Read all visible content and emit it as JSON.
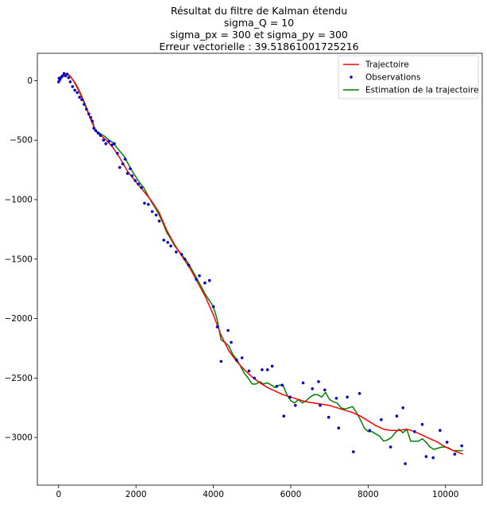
{
  "chart_data": {
    "type": "line",
    "title_lines": [
      "Résultat du filtre de Kalman étendu",
      "sigma_Q = 10",
      "sigma_px = 300 et sigma_py = 300",
      "Erreur vectorielle : 39.51861001725216"
    ],
    "xlabel": "",
    "ylabel": "",
    "xlim": [
      -550,
      10950
    ],
    "ylim": [
      -3400,
      230
    ],
    "x_ticks": [
      0,
      2000,
      4000,
      6000,
      8000,
      10000
    ],
    "y_ticks": [
      0,
      -500,
      -1000,
      -1500,
      -2000,
      -2500,
      -3000
    ],
    "grid": false,
    "legend_position": "top-right",
    "colors": {
      "trajectory": "#ff0000",
      "observations": "#0000cc",
      "estimate": "#008000"
    },
    "series": [
      {
        "name": "Trajectoire",
        "kind": "line",
        "x": [
          0,
          50,
          100,
          150,
          200,
          250,
          300,
          350,
          400,
          500,
          600,
          700,
          800,
          900,
          1000,
          1200,
          1400,
          1600,
          1800,
          2000,
          2200,
          2400,
          2600,
          2800,
          3000,
          3200,
          3400,
          3600,
          3800,
          4000,
          4200,
          4400,
          4600,
          4800,
          5000,
          5200,
          5400,
          5600,
          5800,
          6000,
          6200,
          6400,
          6600,
          6800,
          7000,
          7200,
          7400,
          7600,
          7800,
          8000,
          8200,
          8400,
          8600,
          8800,
          9000,
          9200,
          9400,
          9600,
          9800,
          10000,
          10200,
          10450
        ],
        "y": [
          10,
          25,
          40,
          48,
          52,
          50,
          38,
          15,
          -10,
          -70,
          -140,
          -220,
          -300,
          -380,
          -440,
          -490,
          -560,
          -660,
          -770,
          -850,
          -930,
          -1010,
          -1110,
          -1260,
          -1380,
          -1480,
          -1580,
          -1700,
          -1820,
          -1970,
          -2140,
          -2270,
          -2360,
          -2430,
          -2490,
          -2540,
          -2580,
          -2610,
          -2640,
          -2660,
          -2680,
          -2700,
          -2710,
          -2720,
          -2730,
          -2750,
          -2770,
          -2790,
          -2820,
          -2860,
          -2900,
          -2930,
          -2940,
          -2940,
          -2930,
          -2950,
          -2980,
          -3010,
          -3040,
          -3080,
          -3110,
          -3140
        ]
      },
      {
        "name": "Observations",
        "kind": "scatter",
        "x": [
          0,
          10,
          40,
          70,
          100,
          140,
          180,
          220,
          260,
          300,
          360,
          420,
          480,
          540,
          600,
          660,
          720,
          780,
          830,
          870,
          910,
          960,
          1020,
          1080,
          1160,
          1220,
          1300,
          1380,
          1440,
          1520,
          1580,
          1660,
          1720,
          1780,
          1850,
          1900,
          1980,
          2060,
          2140,
          2220,
          2320,
          2420,
          2520,
          2600,
          2720,
          2820,
          2900,
          3040,
          3180,
          3260,
          3360,
          3560,
          3640,
          3780,
          3900,
          4000,
          4100,
          4200,
          4380,
          4460,
          4600,
          4740,
          4920,
          5060,
          5260,
          5400,
          5520,
          5640,
          5780,
          5820,
          5980,
          6120,
          6320,
          6560,
          6720,
          6760,
          6880,
          6980,
          7180,
          7240,
          7460,
          7620,
          7780,
          8040,
          8340,
          8580,
          8740,
          8900,
          8960,
          9200,
          9400,
          9500,
          9680,
          9860,
          10040,
          10240,
          10420
        ],
        "y": [
          -10,
          20,
          10,
          30,
          40,
          60,
          40,
          55,
          25,
          -10,
          -50,
          -80,
          -100,
          -140,
          -160,
          -200,
          -240,
          -280,
          -310,
          -340,
          -400,
          -420,
          -440,
          -460,
          -500,
          -530,
          -510,
          -540,
          -530,
          -610,
          -730,
          -700,
          -660,
          -780,
          -740,
          -800,
          -840,
          -870,
          -900,
          -1030,
          -1040,
          -1100,
          -1130,
          -1180,
          -1340,
          -1360,
          -1390,
          -1440,
          -1460,
          -1500,
          -1550,
          -1670,
          -1640,
          -1700,
          -1680,
          -1900,
          -2070,
          -2360,
          -2100,
          -2200,
          -2350,
          -2330,
          -2440,
          -2500,
          -2430,
          -2430,
          -2400,
          -2570,
          -2560,
          -2820,
          -2660,
          -2730,
          -2540,
          -2590,
          -2530,
          -2730,
          -2600,
          -2830,
          -2670,
          -2920,
          -2660,
          -3120,
          -2630,
          -2940,
          -2850,
          -3080,
          -2820,
          -2750,
          -3220,
          -2950,
          -2890,
          -3160,
          -3170,
          -2940,
          -3040,
          -3140,
          -3070
        ]
      },
      {
        "name": "Estimation de la trajectoire",
        "kind": "line",
        "x": [
          0,
          60,
          120,
          180,
          240,
          300,
          360,
          420,
          500,
          600,
          700,
          800,
          880,
          940,
          1000,
          1100,
          1200,
          1300,
          1400,
          1500,
          1600,
          1700,
          1800,
          1900,
          2000,
          2100,
          2200,
          2300,
          2400,
          2500,
          2600,
          2700,
          2800,
          2900,
          3000,
          3100,
          3200,
          3300,
          3400,
          3500,
          3600,
          3700,
          3800,
          3900,
          4000,
          4100,
          4200,
          4300,
          4400,
          4500,
          4600,
          4700,
          4800,
          4900,
          5000,
          5100,
          5200,
          5300,
          5400,
          5500,
          5600,
          5700,
          5800,
          5900,
          6000,
          6100,
          6200,
          6300,
          6400,
          6500,
          6600,
          6700,
          6800,
          6900,
          7000,
          7100,
          7200,
          7300,
          7400,
          7500,
          7600,
          7700,
          7800,
          7900,
          8000,
          8100,
          8200,
          8300,
          8400,
          8500,
          8600,
          8700,
          8800,
          8900,
          9000,
          9100,
          9200,
          9300,
          9400,
          9500,
          9600,
          9700,
          9800,
          9900,
          10000,
          10100,
          10200,
          10300,
          10450
        ],
        "y": [
          0,
          20,
          40,
          50,
          50,
          35,
          10,
          -15,
          -60,
          -130,
          -210,
          -300,
          -340,
          -420,
          -430,
          -450,
          -470,
          -500,
          -520,
          -560,
          -600,
          -640,
          -700,
          -760,
          -810,
          -860,
          -900,
          -960,
          -1020,
          -1070,
          -1130,
          -1200,
          -1280,
          -1330,
          -1390,
          -1430,
          -1470,
          -1510,
          -1560,
          -1620,
          -1680,
          -1740,
          -1800,
          -1850,
          -1900,
          -2010,
          -2180,
          -2200,
          -2230,
          -2300,
          -2340,
          -2400,
          -2460,
          -2500,
          -2550,
          -2550,
          -2530,
          -2550,
          -2540,
          -2560,
          -2580,
          -2560,
          -2560,
          -2640,
          -2690,
          -2710,
          -2680,
          -2710,
          -2690,
          -2660,
          -2640,
          -2640,
          -2660,
          -2620,
          -2680,
          -2700,
          -2710,
          -2750,
          -2760,
          -2750,
          -2740,
          -2790,
          -2850,
          -2920,
          -2950,
          -2950,
          -2970,
          -2990,
          -3030,
          -3020,
          -3000,
          -2960,
          -2930,
          -2960,
          -2930,
          -3030,
          -3030,
          -3030,
          -3010,
          -3040,
          -3080,
          -3100,
          -3090,
          -3080,
          -3080,
          -3090,
          -3110,
          -3110,
          -3110
        ]
      }
    ]
  }
}
